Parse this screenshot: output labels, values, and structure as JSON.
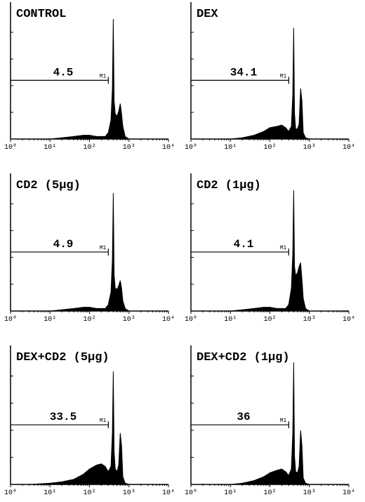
{
  "chart_data": [
    {
      "type": "area",
      "title": "CONTROL",
      "xscale": "log",
      "xlim": [
        1,
        10000
      ],
      "ylim": [
        0,
        100
      ],
      "color": "#000000",
      "xticks": [
        {
          "value": 1,
          "label": "10⁰"
        },
        {
          "value": 10,
          "label": "10¹"
        },
        {
          "value": 100,
          "label": "10²"
        },
        {
          "value": 1000,
          "label": "10³"
        },
        {
          "value": 10000,
          "label": "10⁴"
        }
      ],
      "x": [
        1,
        3,
        10,
        20,
        40,
        70,
        100,
        150,
        200,
        250,
        300,
        350,
        380,
        400,
        420,
        450,
        500,
        550,
        600,
        650,
        700,
        800,
        1000,
        2000,
        10000
      ],
      "values": [
        0,
        0,
        0,
        1,
        2,
        3,
        3,
        2,
        2,
        2,
        5,
        15,
        40,
        95,
        30,
        20,
        18,
        22,
        28,
        20,
        10,
        2,
        0,
        0,
        0
      ],
      "marker": {
        "label": "M1",
        "range": [
          1,
          300
        ],
        "percent": 4.5
      }
    },
    {
      "type": "area",
      "title": "DEX",
      "xscale": "log",
      "xlim": [
        1,
        10000
      ],
      "ylim": [
        0,
        100
      ],
      "color": "#000000",
      "xticks": [
        {
          "value": 1,
          "label": "10⁰"
        },
        {
          "value": 10,
          "label": "10¹"
        },
        {
          "value": 100,
          "label": "10²"
        },
        {
          "value": 1000,
          "label": "10³"
        },
        {
          "value": 10000,
          "label": "10⁴"
        }
      ],
      "x": [
        1,
        3,
        10,
        20,
        40,
        70,
        100,
        150,
        200,
        250,
        300,
        350,
        380,
        400,
        420,
        450,
        500,
        550,
        600,
        650,
        700,
        800,
        1000,
        2000,
        10000
      ],
      "values": [
        0,
        0,
        0,
        1,
        3,
        6,
        9,
        10,
        11,
        9,
        6,
        10,
        35,
        88,
        20,
        8,
        8,
        12,
        40,
        30,
        5,
        1,
        0,
        0,
        0
      ],
      "marker": {
        "label": "M1",
        "range": [
          1,
          300
        ],
        "percent": 34.1
      }
    },
    {
      "type": "area",
      "title": "CD2 (5μg)",
      "xscale": "log",
      "xlim": [
        1,
        10000
      ],
      "ylim": [
        0,
        100
      ],
      "color": "#000000",
      "xticks": [
        {
          "value": 1,
          "label": "10⁰"
        },
        {
          "value": 10,
          "label": "10¹"
        },
        {
          "value": 100,
          "label": "10²"
        },
        {
          "value": 1000,
          "label": "10³"
        },
        {
          "value": 10000,
          "label": "10⁴"
        }
      ],
      "x": [
        1,
        3,
        10,
        20,
        40,
        70,
        100,
        150,
        200,
        250,
        300,
        350,
        380,
        400,
        420,
        450,
        500,
        550,
        600,
        650,
        700,
        800,
        1000,
        2000,
        10000
      ],
      "values": [
        0,
        0,
        0,
        1,
        2,
        3,
        3,
        2,
        2,
        2,
        5,
        15,
        40,
        93,
        28,
        18,
        17,
        20,
        24,
        18,
        8,
        2,
        0,
        0,
        0
      ],
      "marker": {
        "label": "M1",
        "range": [
          1,
          300
        ],
        "percent": 4.9
      }
    },
    {
      "type": "area",
      "title": "CD2 (1μg)",
      "xscale": "log",
      "xlim": [
        1,
        10000
      ],
      "ylim": [
        0,
        100
      ],
      "color": "#000000",
      "xticks": [
        {
          "value": 1,
          "label": "10⁰"
        },
        {
          "value": 10,
          "label": "10¹"
        },
        {
          "value": 100,
          "label": "10²"
        },
        {
          "value": 1000,
          "label": "10³"
        },
        {
          "value": 10000,
          "label": "10⁴"
        }
      ],
      "x": [
        1,
        3,
        10,
        20,
        40,
        70,
        100,
        150,
        200,
        250,
        300,
        350,
        380,
        400,
        420,
        450,
        500,
        550,
        600,
        650,
        700,
        800,
        1000,
        2000,
        10000
      ],
      "values": [
        0,
        0,
        0,
        1,
        2,
        3,
        3,
        2,
        2,
        2,
        5,
        18,
        45,
        95,
        35,
        28,
        30,
        35,
        38,
        25,
        10,
        2,
        0,
        0,
        0
      ],
      "marker": {
        "label": "M1",
        "range": [
          1,
          300
        ],
        "percent": 4.1
      }
    },
    {
      "type": "area",
      "title": "DEX+CD2 (5μg)",
      "xscale": "log",
      "xlim": [
        1,
        10000
      ],
      "ylim": [
        0,
        100
      ],
      "color": "#000000",
      "xticks": [
        {
          "value": 1,
          "label": "10⁰"
        },
        {
          "value": 10,
          "label": "10¹"
        },
        {
          "value": 100,
          "label": "10²"
        },
        {
          "value": 1000,
          "label": "10³"
        },
        {
          "value": 10000,
          "label": "10⁴"
        }
      ],
      "x": [
        1,
        3,
        10,
        20,
        40,
        70,
        100,
        150,
        200,
        250,
        300,
        350,
        380,
        400,
        420,
        450,
        500,
        550,
        600,
        650,
        700,
        800,
        1000,
        2000,
        10000
      ],
      "values": [
        0,
        0,
        1,
        2,
        4,
        8,
        12,
        15,
        16,
        14,
        10,
        14,
        40,
        88,
        25,
        12,
        10,
        15,
        40,
        30,
        6,
        1,
        0,
        0,
        0
      ],
      "marker": {
        "label": "M1",
        "range": [
          1,
          300
        ],
        "percent": 33.5
      }
    },
    {
      "type": "area",
      "title": "DEX+CD2 (1μg)",
      "xscale": "log",
      "xlim": [
        1,
        10000
      ],
      "ylim": [
        0,
        100
      ],
      "color": "#000000",
      "xticks": [
        {
          "value": 1,
          "label": "10⁰"
        },
        {
          "value": 10,
          "label": "10¹"
        },
        {
          "value": 100,
          "label": "10²"
        },
        {
          "value": 1000,
          "label": "10³"
        },
        {
          "value": 10000,
          "label": "10⁴"
        }
      ],
      "x": [
        1,
        3,
        10,
        20,
        40,
        70,
        100,
        150,
        200,
        250,
        300,
        350,
        380,
        400,
        420,
        450,
        500,
        550,
        600,
        650,
        700,
        800,
        1000,
        2000,
        10000
      ],
      "values": [
        0,
        0,
        0,
        1,
        3,
        6,
        9,
        11,
        12,
        10,
        7,
        12,
        40,
        95,
        22,
        10,
        9,
        14,
        42,
        30,
        5,
        1,
        0,
        0,
        0
      ],
      "marker": {
        "label": "M1",
        "range": [
          1,
          300
        ],
        "percent": 36
      }
    }
  ]
}
